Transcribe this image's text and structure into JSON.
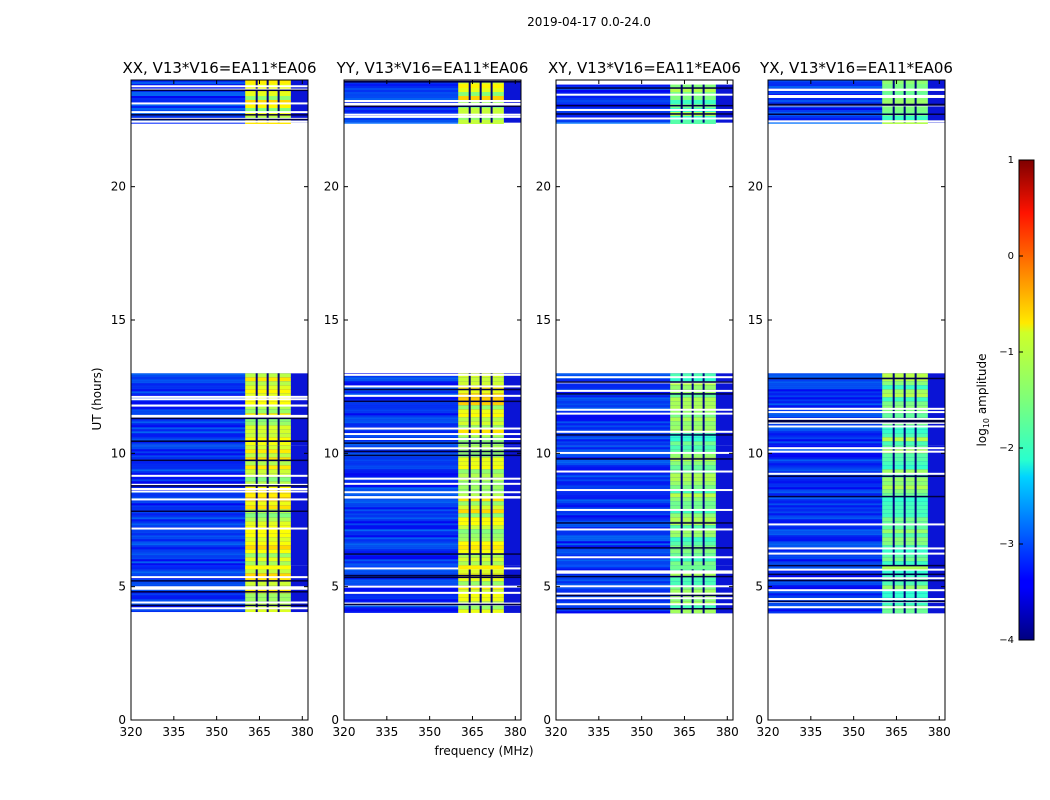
{
  "figure": {
    "suptitle": "2019-04-17 0.0-24.0"
  },
  "chart_data": {
    "type": "heatmap",
    "title": "2019-04-17 0.0-24.0",
    "xlabel": "frequency (MHz)",
    "ylabel": "UT (hours)",
    "xlim": [
      320,
      382
    ],
    "ylim": [
      0,
      24
    ],
    "xticks": [
      320,
      335,
      350,
      365,
      380
    ],
    "yticks": [
      0,
      5,
      10,
      15,
      20
    ],
    "panels": [
      {
        "title": "XX, V13*V16=EA11*EA06",
        "pol": "XX",
        "baseline": "V13*V16=EA11*EA06"
      },
      {
        "title": "YY, V13*V16=EA11*EA06",
        "pol": "YY",
        "baseline": "V13*V16=EA11*EA06"
      },
      {
        "title": "XY, V13*V16=EA11*EA06",
        "pol": "XY",
        "baseline": "V13*V16=EA11*EA06"
      },
      {
        "title": "YX, V13*V16=EA11*EA06",
        "pol": "YX",
        "baseline": "V13*V16=EA11*EA06"
      }
    ],
    "data_time_ranges_hours": [
      [
        4.0,
        5.8
      ],
      [
        5.8,
        10.3
      ],
      [
        10.3,
        13.0
      ],
      [
        22.4,
        24.0
      ]
    ],
    "high_amplitude_band_mhz": [
      360,
      376
    ],
    "colorbar": {
      "label": "log10 amplitude",
      "label_base": "log",
      "label_sub": "10",
      "label_rest": " amplitude",
      "range": [
        -4,
        1
      ],
      "ticks": [
        "1",
        "0",
        "−1",
        "−2",
        "−3",
        "−4"
      ],
      "tick_values": [
        1,
        0,
        -1,
        -2,
        -3,
        -4
      ],
      "colormap": "jet"
    }
  }
}
